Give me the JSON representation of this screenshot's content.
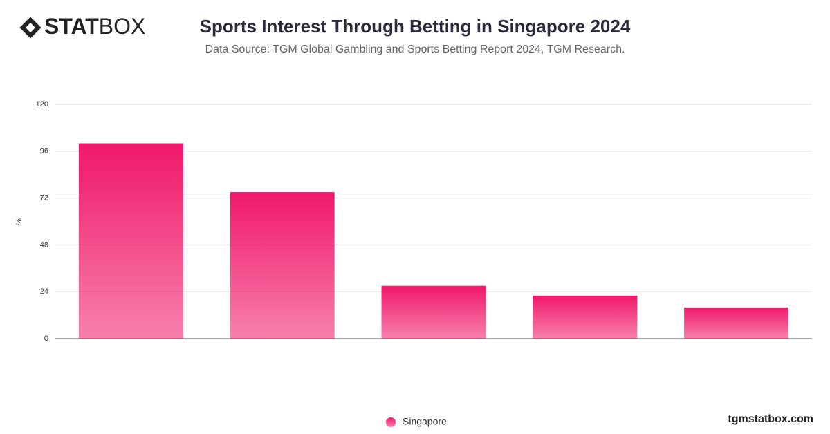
{
  "logo": {
    "bold": "STAT",
    "light": "BOX"
  },
  "footer": "tgmstatbox.com",
  "chart_data": {
    "type": "bar",
    "title": "Sports Interest Through Betting in Singapore 2024",
    "subtitle": "Data Source: TGM Global Gambling and Sports Betting Report 2024, TGM Research.",
    "y_label": "%",
    "categories": [
      null,
      null,
      null,
      null,
      null
    ],
    "series": [
      {
        "name": "Singapore",
        "color": "#f0186a",
        "values": [
          100,
          75,
          27,
          22,
          16
        ]
      }
    ],
    "ylim": [
      0,
      120
    ],
    "yticks": [
      0,
      24,
      48,
      72,
      96,
      120
    ],
    "grid": true,
    "legend": "bottom"
  }
}
